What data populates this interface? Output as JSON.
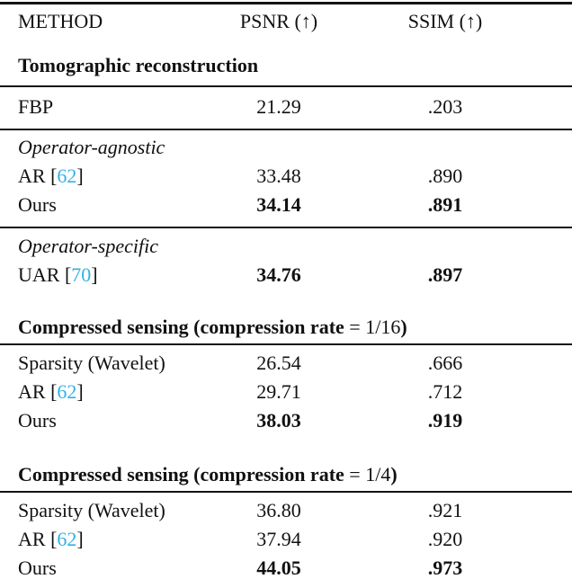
{
  "colors": {
    "text": "#111111",
    "rule": "#141414",
    "citation": "#32b1e6",
    "background": "#ffffff"
  },
  "table": {
    "header": {
      "method": "METHOD",
      "psnr": "PSNR (↑)",
      "ssim": "SSIM (↑)"
    },
    "sections": [
      {
        "title": {
          "bold": "Tomographic reconstruction",
          "math": "",
          "close": ""
        },
        "groups": [
          {
            "label": "",
            "rows": [
              {
                "m": "FBP",
                "psnr": "21.29",
                "ssim": ".203"
              }
            ]
          },
          {
            "label": "Operator-agnostic",
            "rows": [
              {
                "m": "AR ",
                "ob": "[",
                "cite": "62",
                "cb": "]",
                "psnr": "33.48",
                "ssim": ".890"
              },
              {
                "m": "Ours",
                "psnr": "34.14",
                "ssim": ".891"
              }
            ]
          },
          {
            "label": "Operator-specific",
            "rows": [
              {
                "m": "UAR ",
                "ob": "[",
                "cite": "70",
                "cb": "]",
                "psnr": "34.76",
                "ssim": ".897"
              }
            ]
          }
        ]
      },
      {
        "title": {
          "bold": "Compressed sensing (compression rate ",
          "math": "= 1/16",
          "close": ")"
        },
        "groups": [
          {
            "label": "",
            "rows": [
              {
                "m": "Sparsity (Wavelet)",
                "psnr": "26.54",
                "ssim": ".666"
              },
              {
                "m": "AR ",
                "ob": "[",
                "cite": "62",
                "cb": "]",
                "psnr": "29.71",
                "ssim": ".712"
              },
              {
                "m": "Ours",
                "psnr": "38.03",
                "ssim": ".919"
              }
            ]
          }
        ]
      },
      {
        "title": {
          "bold": "Compressed sensing (compression rate ",
          "math": "= 1/4",
          "close": ")"
        },
        "groups": [
          {
            "label": "",
            "rows": [
              {
                "m": "Sparsity (Wavelet)",
                "psnr": "36.80",
                "ssim": ".921"
              },
              {
                "m": "AR ",
                "ob": "[",
                "cite": "62",
                "cb": "]",
                "psnr": "37.94",
                "ssim": ".920"
              },
              {
                "m": "Ours",
                "psnr": "44.05",
                "ssim": ".973"
              }
            ]
          }
        ]
      }
    ]
  }
}
